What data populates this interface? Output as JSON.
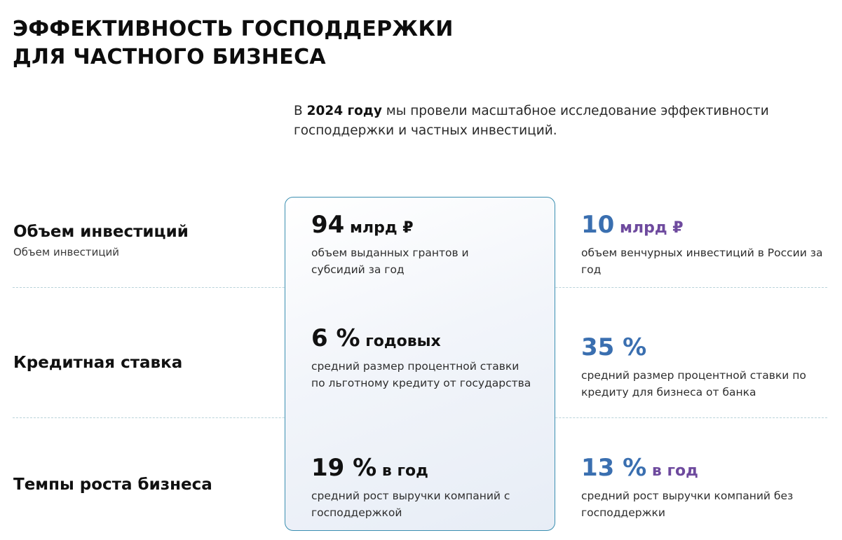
{
  "title": {
    "line1": "ЭФФЕКТИВНОСТЬ ГОСПОДДЕРЖКИ",
    "line2": "ДЛЯ ЧАСТНОГО БИЗНЕСА"
  },
  "intro": {
    "prefix": "В ",
    "highlight": "2024 году",
    "line1_rest": " мы провели масштабное исследование эффективности",
    "line2": "господдержки и частных инвестиций."
  },
  "rows": [
    {
      "label": "Объем инвестиций",
      "sublabel": "Объем инвестиций",
      "gov": {
        "num": "94",
        "unit": " млрд ₽",
        "desc": "объем выданных грантов и субсидий за год"
      },
      "market": {
        "num": "10",
        "unit": " млрд ₽",
        "desc": "объем венчурных инвестиций в России за год"
      }
    },
    {
      "label": "Кредитная ставка",
      "gov": {
        "num": "6 %",
        "unit": " годовых",
        "desc": "средний размер процентной ставки по льготному кредиту от государства"
      },
      "market": {
        "num": "35 %",
        "unit": "",
        "desc": "средний размер процентной ставки по кредиту для бизнеса от банка"
      }
    },
    {
      "label": "Темпы роста бизнеса",
      "gov": {
        "num": "19 %",
        "unit": " в год",
        "desc": "средний рост выручки компаний с господдержкой"
      },
      "market": {
        "num": "13 %",
        "unit": " в год",
        "desc": "средний рост выручки компаний без господдержки"
      }
    }
  ],
  "colors": {
    "market_number": "#3a6fb0",
    "market_unit": "#6e4a9e",
    "card_border": "#3b8fb1",
    "divider": "#b9d3d9"
  }
}
